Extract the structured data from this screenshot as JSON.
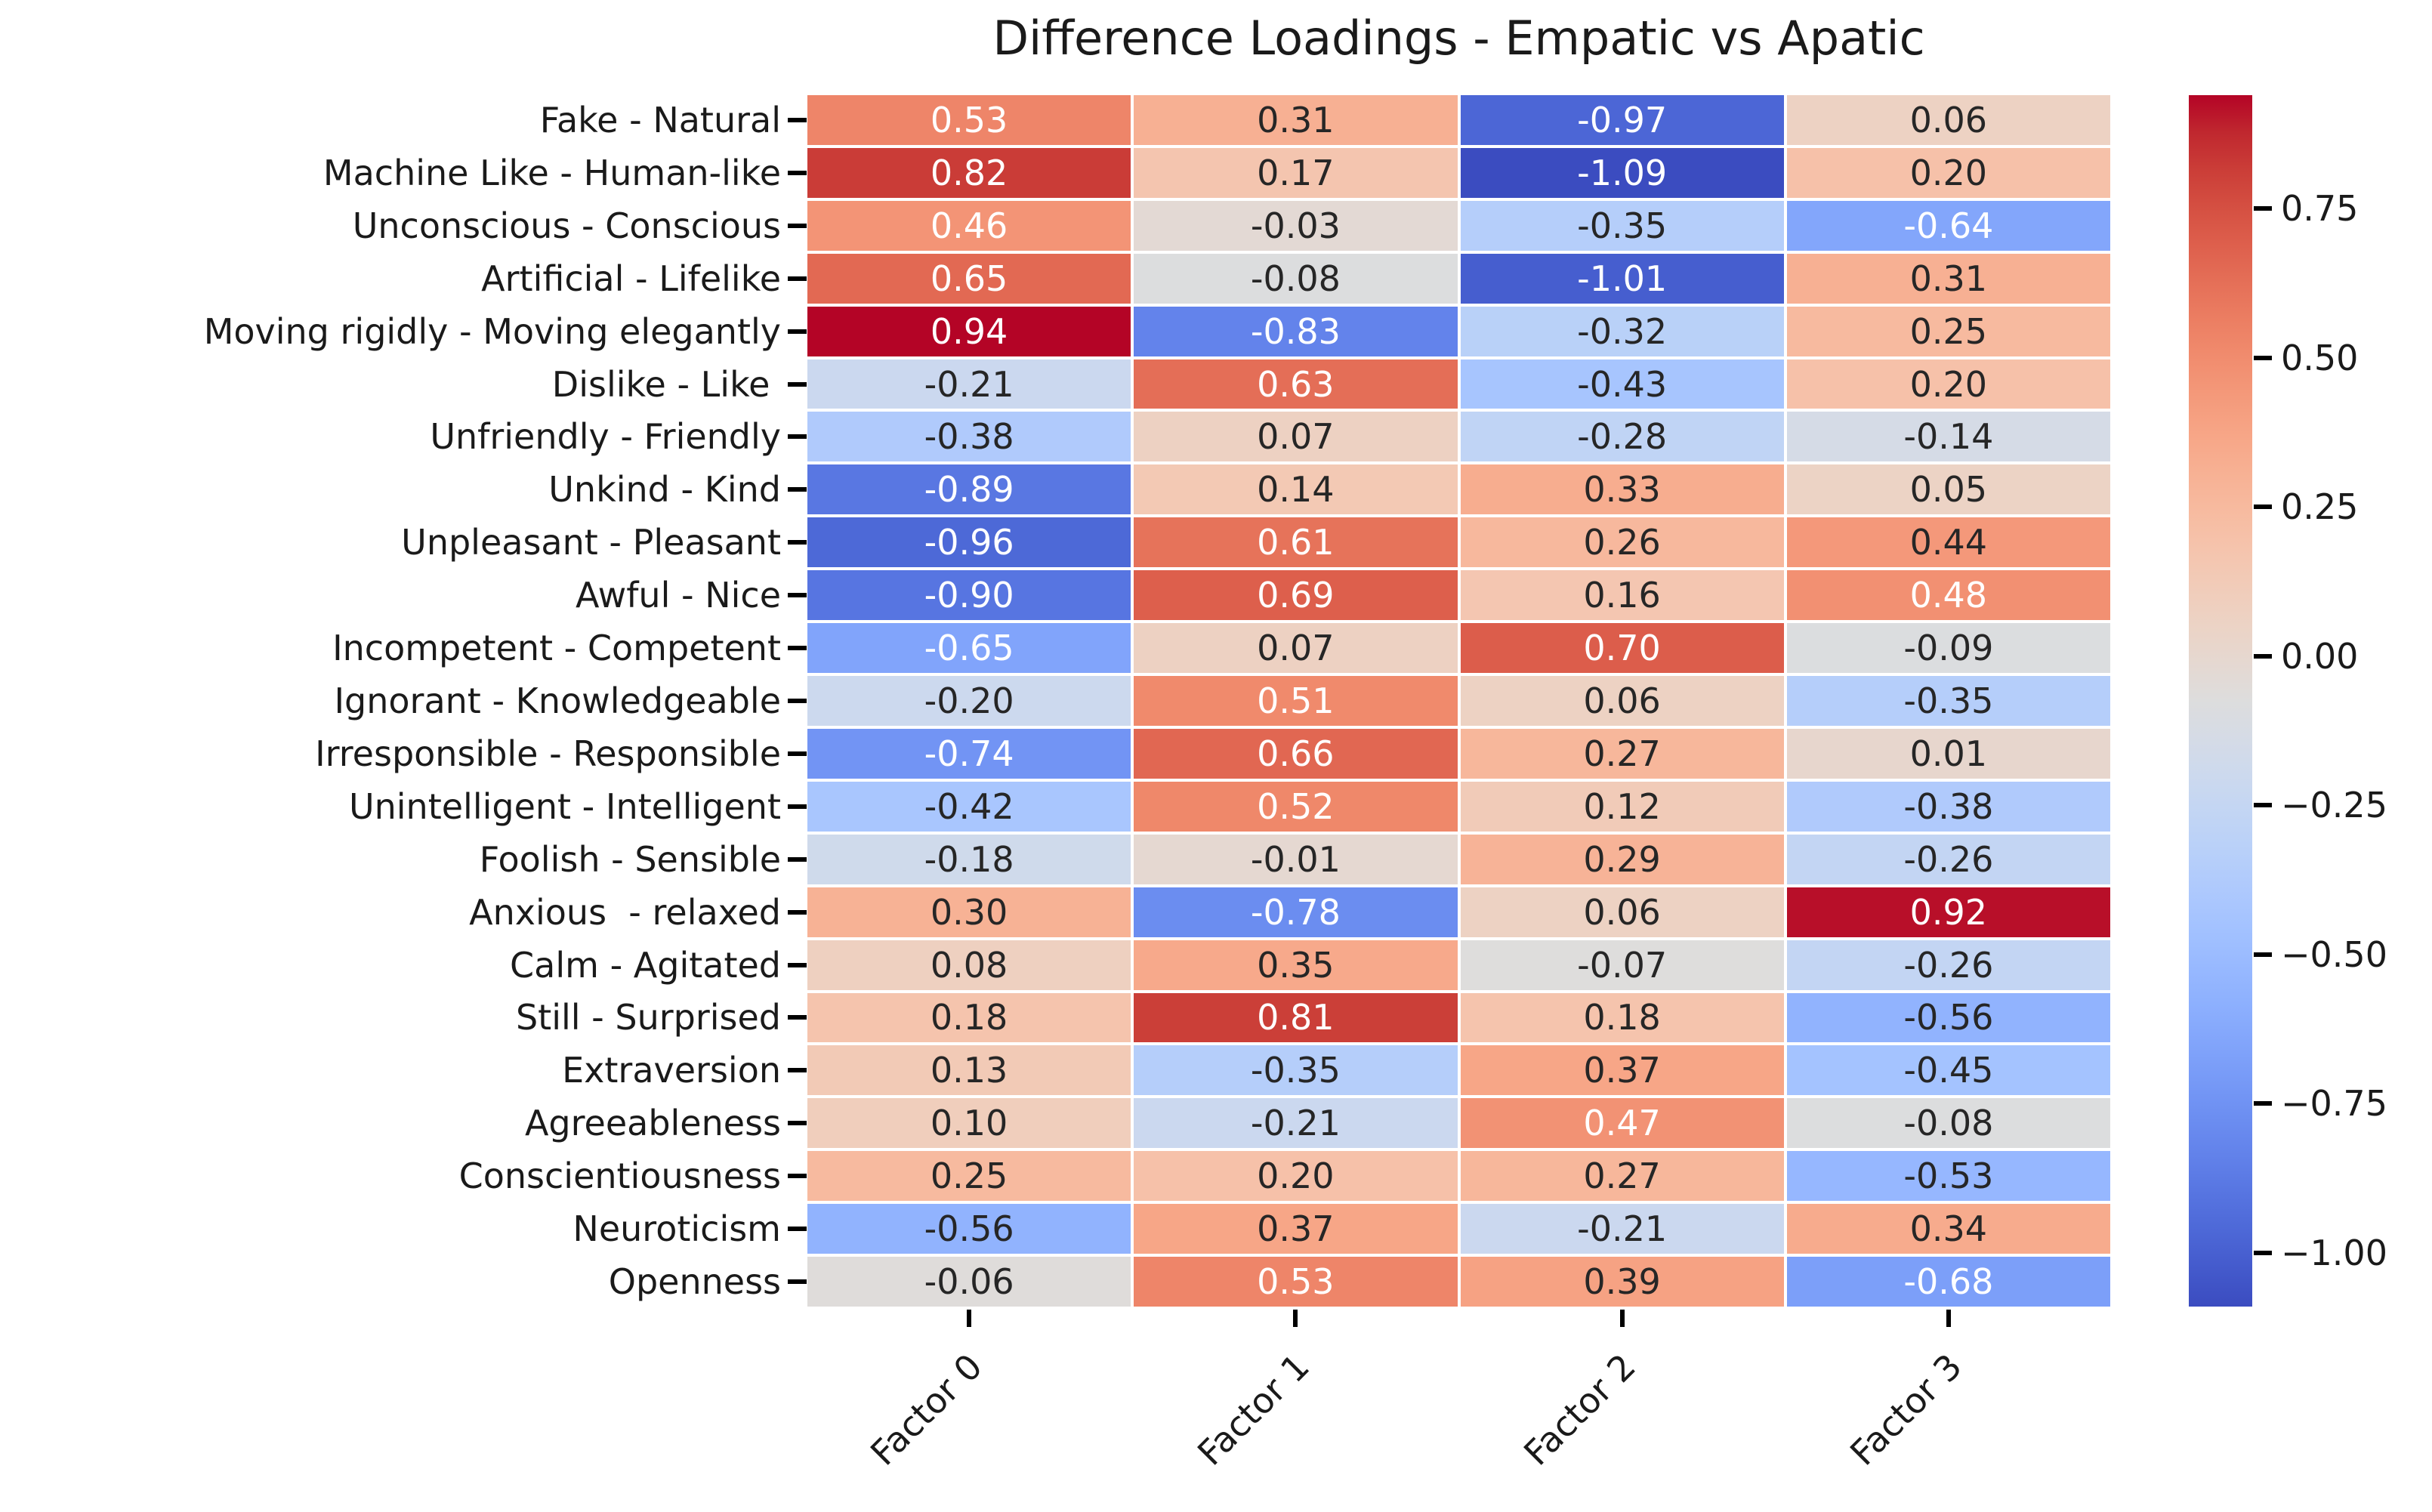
{
  "chart_data": {
    "type": "heatmap",
    "title": "Difference Loadings - Empatic vs Apatic",
    "columns": [
      "Factor 0",
      "Factor 1",
      "Factor 2",
      "Factor 3"
    ],
    "rows": [
      "Fake - Natural",
      "Machine Like - Human-like",
      "Unconscious - Conscious",
      "Artificial - Lifelike",
      "Moving rigidly - Moving elegantly",
      "Dislike - Like ",
      "Unfriendly - Friendly",
      "Unkind - Kind",
      "Unpleasant - Pleasant",
      "Awful - Nice",
      "Incompetent - Competent",
      "Ignorant - Knowledgeable",
      "Irresponsible - Responsible",
      "Unintelligent - Intelligent",
      "Foolish - Sensible",
      "Anxious  - relaxed",
      "Calm - Agitated",
      "Still - Surprised",
      "Extraversion",
      "Agreeableness",
      "Conscientiousness",
      "Neuroticism",
      "Openness"
    ],
    "values": [
      [
        0.53,
        0.31,
        -0.97,
        0.06
      ],
      [
        0.82,
        0.17,
        -1.09,
        0.2
      ],
      [
        0.46,
        -0.03,
        -0.35,
        -0.64
      ],
      [
        0.65,
        -0.08,
        -1.01,
        0.31
      ],
      [
        0.94,
        -0.83,
        -0.32,
        0.25
      ],
      [
        -0.21,
        0.63,
        -0.43,
        0.2
      ],
      [
        -0.38,
        0.07,
        -0.28,
        -0.14
      ],
      [
        -0.89,
        0.14,
        0.33,
        0.05
      ],
      [
        -0.96,
        0.61,
        0.26,
        0.44
      ],
      [
        -0.9,
        0.69,
        0.16,
        0.48
      ],
      [
        -0.65,
        0.07,
        0.7,
        -0.09
      ],
      [
        -0.2,
        0.51,
        0.06,
        -0.35
      ],
      [
        -0.74,
        0.66,
        0.27,
        0.01
      ],
      [
        -0.42,
        0.52,
        0.12,
        -0.38
      ],
      [
        -0.18,
        -0.01,
        0.29,
        -0.26
      ],
      [
        0.3,
        -0.78,
        0.06,
        0.92
      ],
      [
        0.08,
        0.35,
        -0.07,
        -0.26
      ],
      [
        0.18,
        0.81,
        0.18,
        -0.56
      ],
      [
        0.13,
        -0.35,
        0.37,
        -0.45
      ],
      [
        0.1,
        -0.21,
        0.47,
        -0.08
      ],
      [
        0.25,
        0.2,
        0.27,
        -0.53
      ],
      [
        -0.56,
        0.37,
        -0.21,
        0.34
      ],
      [
        -0.06,
        0.53,
        0.39,
        -0.68
      ]
    ],
    "value_format_decimals": 2,
    "vmin": -1.09,
    "vmax": 0.94,
    "xticklabel_rotation": 45,
    "grid": false,
    "colormap": "coolwarm",
    "colormap_rgb": [
      [
        59,
        76,
        192
      ],
      [
        68,
        90,
        204
      ],
      [
        77,
        104,
        215
      ],
      [
        87,
        117,
        225
      ],
      [
        98,
        130,
        234
      ],
      [
        108,
        142,
        241
      ],
      [
        119,
        154,
        247
      ],
      [
        130,
        165,
        251
      ],
      [
        141,
        176,
        254
      ],
      [
        152,
        185,
        255
      ],
      [
        163,
        194,
        255
      ],
      [
        174,
        201,
        253
      ],
      [
        184,
        208,
        249
      ],
      [
        194,
        213,
        244
      ],
      [
        204,
        217,
        238
      ],
      [
        213,
        219,
        230
      ],
      [
        221,
        221,
        221
      ],
      [
        229,
        216,
        209
      ],
      [
        236,
        211,
        197
      ],
      [
        241,
        204,
        185
      ],
      [
        245,
        196,
        173
      ],
      [
        247,
        187,
        160
      ],
      [
        247,
        177,
        148
      ],
      [
        247,
        166,
        135
      ],
      [
        244,
        154,
        123
      ],
      [
        241,
        141,
        111
      ],
      [
        236,
        127,
        99
      ],
      [
        229,
        112,
        88
      ],
      [
        222,
        96,
        77
      ],
      [
        213,
        80,
        66
      ],
      [
        203,
        62,
        56
      ],
      [
        192,
        40,
        47
      ],
      [
        180,
        4,
        38
      ]
    ],
    "colorbar": {
      "position": "right",
      "tick_values": [
        0.75,
        0.5,
        0.25,
        0.0,
        -0.25,
        -0.5,
        -0.75,
        -1.0
      ],
      "tick_labels": [
        "0.75",
        "0.50",
        "0.25",
        "0.00",
        "−0.25",
        "−0.50",
        "−0.75",
        "−1.00"
      ]
    }
  },
  "colors": {
    "background": "#ffffff",
    "axis_text": "#1a1a1a",
    "annot_dark": "#262626",
    "annot_light": "#ffffff",
    "tick_mark": "#000000",
    "cmap_min": "#3b4cc0",
    "cmap_mid": "#dddddd",
    "cmap_max": "#b40426"
  }
}
